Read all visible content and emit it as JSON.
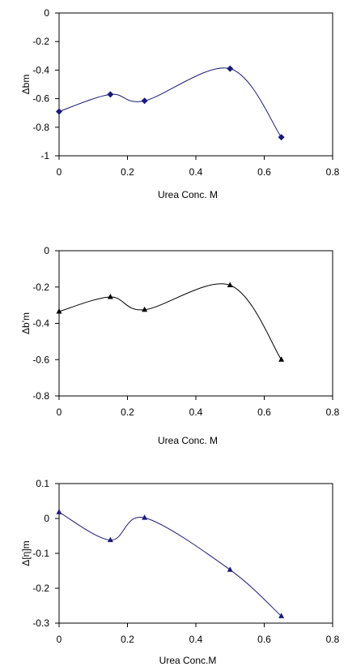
{
  "chart_data": [
    {
      "type": "scatter",
      "xlabel": "Urea Conc. M",
      "ylabel": "Δbm",
      "xlim": [
        0,
        0.8
      ],
      "ylim": [
        -1,
        0
      ],
      "xticks": [
        "0",
        "0.2",
        "0.4",
        "0.6",
        "0.8"
      ],
      "yticks": [
        "0",
        "-0.2",
        "-0.4",
        "-0.6",
        "-0.8",
        "-1"
      ],
      "marker": "diamond",
      "color": "#1a1a7a",
      "points": [
        {
          "x": 0,
          "y": -0.69
        },
        {
          "x": 0.15,
          "y": -0.57
        },
        {
          "x": 0.25,
          "y": -0.615
        },
        {
          "x": 0.5,
          "y": -0.39
        },
        {
          "x": 0.65,
          "y": -0.87
        }
      ]
    },
    {
      "type": "scatter",
      "xlabel": "Urea Conc. M",
      "ylabel": "Δb'm",
      "xlim": [
        0,
        0.8
      ],
      "ylim": [
        -0.8,
        0
      ],
      "xticks": [
        "0",
        "0.2",
        "0.4",
        "0.6",
        "0.8"
      ],
      "yticks": [
        "0",
        "-0.2",
        "-0.4",
        "-0.6",
        "-0.8"
      ],
      "marker": "triangle",
      "color": "#000000",
      "points": [
        {
          "x": 0,
          "y": -0.335
        },
        {
          "x": 0.15,
          "y": -0.255
        },
        {
          "x": 0.25,
          "y": -0.325
        },
        {
          "x": 0.5,
          "y": -0.19
        },
        {
          "x": 0.65,
          "y": -0.6
        }
      ]
    },
    {
      "type": "scatter",
      "xlabel": "Urea Conc.M",
      "ylabel": "Δ[η]m",
      "xlim": [
        0,
        0.8
      ],
      "ylim": [
        -0.3,
        0.1
      ],
      "xticks": [
        "0",
        "0.2",
        "0.4",
        "0.6",
        "0.8"
      ],
      "yticks": [
        "0.1",
        "0",
        "-0.1",
        "-0.2",
        "-0.3"
      ],
      "marker": "triangle",
      "color": "#1a1a7a",
      "points": [
        {
          "x": 0,
          "y": 0.018
        },
        {
          "x": 0.15,
          "y": -0.062
        },
        {
          "x": 0.25,
          "y": 0.002
        },
        {
          "x": 0.5,
          "y": -0.147
        },
        {
          "x": 0.65,
          "y": -0.28
        }
      ]
    }
  ]
}
